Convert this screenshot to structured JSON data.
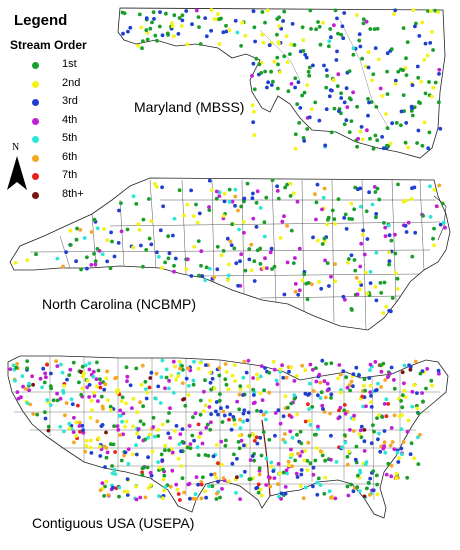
{
  "legend": {
    "title": "Legend",
    "subtitle": "Stream Order",
    "items": [
      {
        "label": "1st",
        "color": "#1a9e2a"
      },
      {
        "label": "2nd",
        "color": "#f3f315"
      },
      {
        "label": "3rd",
        "color": "#1f3fd0"
      },
      {
        "label": "4th",
        "color": "#c21ed6"
      },
      {
        "label": "5th",
        "color": "#2ae6d4"
      },
      {
        "label": "6th",
        "color": "#f5a623"
      },
      {
        "label": "7th",
        "color": "#e8231b"
      },
      {
        "label": "8th+",
        "color": "#7a1414"
      }
    ]
  },
  "north_arrow": {
    "label": "N"
  },
  "maps": [
    {
      "id": "maryland",
      "title": "Maryland (MBSS)"
    },
    {
      "id": "north-carolina",
      "title": "North Carolina (NCBMP)"
    },
    {
      "id": "usa",
      "title": "Contiguous USA (USEPA)"
    }
  ]
}
